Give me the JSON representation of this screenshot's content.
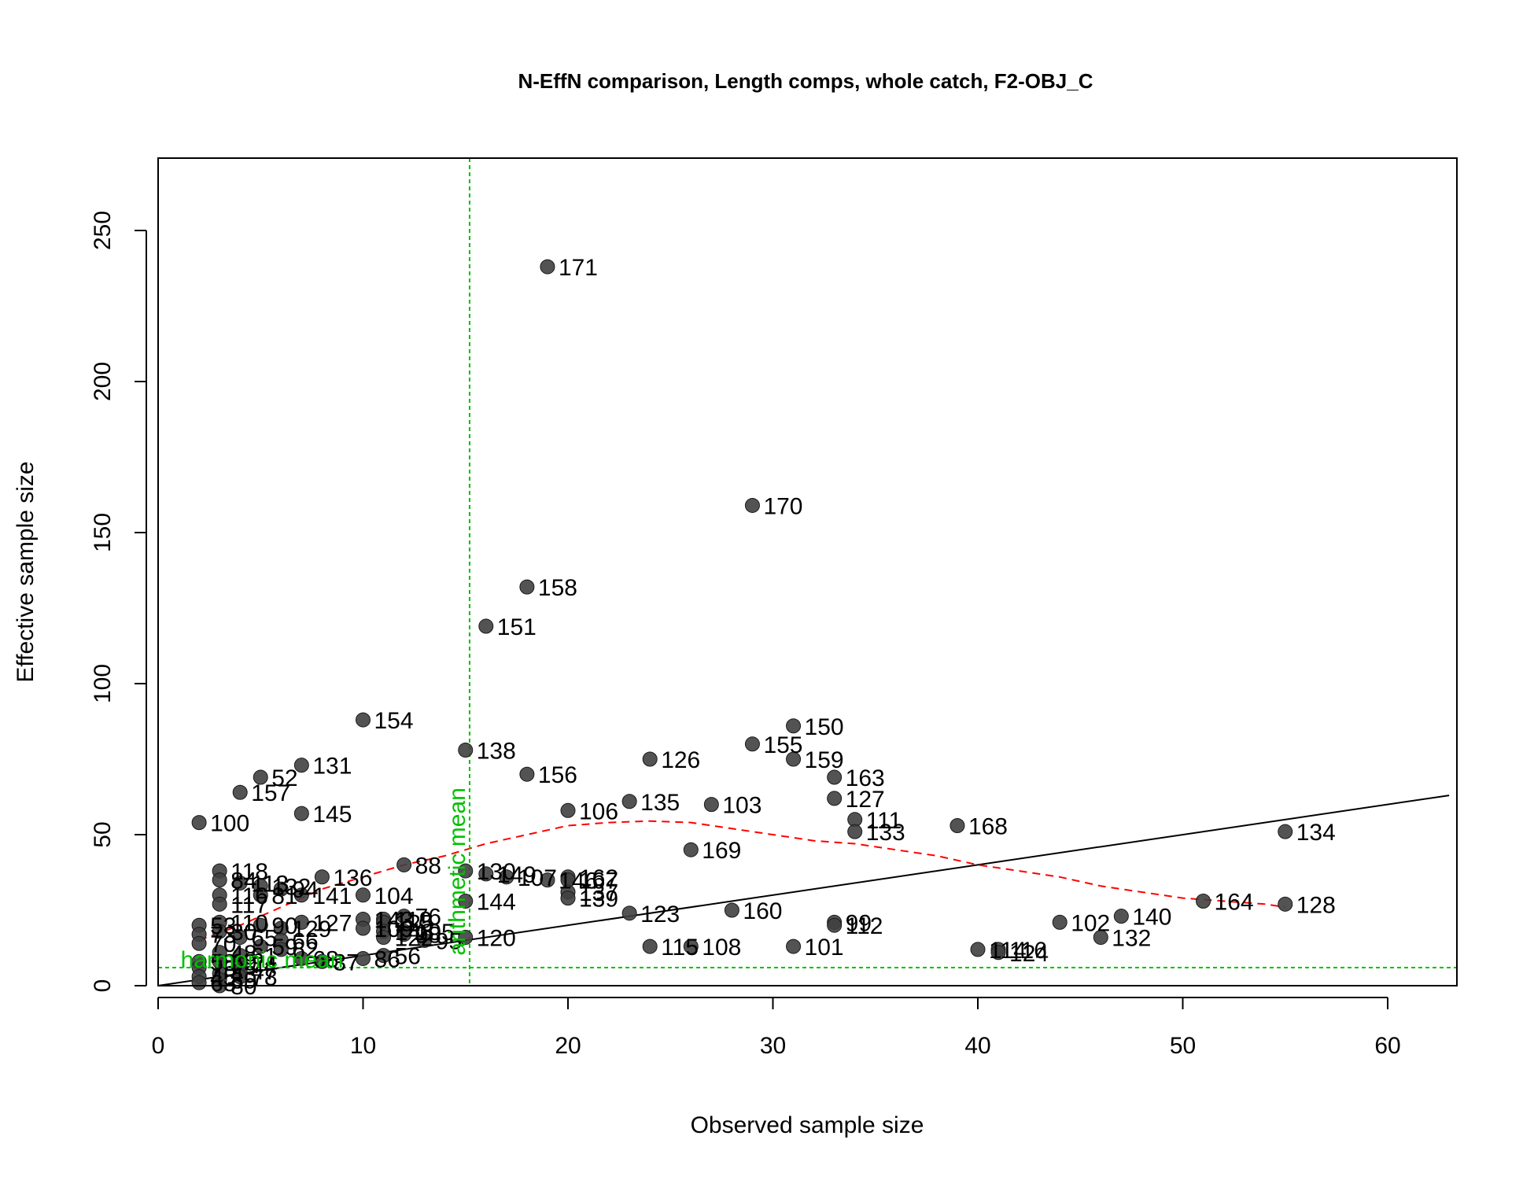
{
  "chart_data": {
    "type": "scatter",
    "title": "N-EffN comparison, Length comps, whole catch, F2-OBJ_C",
    "xlabel": "Observed sample size",
    "ylabel": "Effective sample size",
    "xlim": [
      0,
      63
    ],
    "ylim": [
      0,
      270
    ],
    "x_ticks": [
      0,
      10,
      20,
      30,
      40,
      50,
      60
    ],
    "y_ticks": [
      0,
      50,
      100,
      150,
      200,
      250
    ],
    "colors": {
      "points": "#404040",
      "one_to_one_line": "#000000",
      "loess": "#ff0000",
      "reference": "#00c000"
    },
    "points": [
      {
        "label": "171",
        "x": 19,
        "y": 238
      },
      {
        "label": "170",
        "x": 29,
        "y": 159
      },
      {
        "label": "158",
        "x": 18,
        "y": 132
      },
      {
        "label": "151",
        "x": 16,
        "y": 119
      },
      {
        "label": "154",
        "x": 10,
        "y": 88
      },
      {
        "label": "150",
        "x": 31,
        "y": 86
      },
      {
        "label": "155",
        "x": 29,
        "y": 80
      },
      {
        "label": "138",
        "x": 15,
        "y": 78
      },
      {
        "label": "126",
        "x": 24,
        "y": 75
      },
      {
        "label": "159",
        "x": 31,
        "y": 75
      },
      {
        "label": "131",
        "x": 7,
        "y": 73
      },
      {
        "label": "156",
        "x": 18,
        "y": 70
      },
      {
        "label": "52",
        "x": 5,
        "y": 69
      },
      {
        "label": "163",
        "x": 33,
        "y": 69
      },
      {
        "label": "157",
        "x": 4,
        "y": 64
      },
      {
        "label": "135",
        "x": 23,
        "y": 61
      },
      {
        "label": "127",
        "x": 33,
        "y": 62
      },
      {
        "label": "103",
        "x": 27,
        "y": 60
      },
      {
        "label": "106",
        "x": 20,
        "y": 58
      },
      {
        "label": "145",
        "x": 7,
        "y": 57
      },
      {
        "label": "111",
        "x": 34,
        "y": 55
      },
      {
        "label": "100",
        "x": 2,
        "y": 54
      },
      {
        "label": "168",
        "x": 39,
        "y": 53
      },
      {
        "label": "133",
        "x": 34,
        "y": 51
      },
      {
        "label": "134",
        "x": 55,
        "y": 51
      },
      {
        "label": "169",
        "x": 26,
        "y": 45
      },
      {
        "label": "88",
        "x": 12,
        "y": 40
      },
      {
        "label": "118",
        "x": 3,
        "y": 38
      },
      {
        "label": "130",
        "x": 15,
        "y": 38
      },
      {
        "label": "149",
        "x": 16,
        "y": 37
      },
      {
        "label": "107",
        "x": 17,
        "y": 36
      },
      {
        "label": "146",
        "x": 19,
        "y": 35
      },
      {
        "label": "162",
        "x": 20,
        "y": 36
      },
      {
        "label": "167",
        "x": 20,
        "y": 35
      },
      {
        "label": "136",
        "x": 8,
        "y": 36
      },
      {
        "label": "84",
        "x": 3,
        "y": 35
      },
      {
        "label": "113",
        "x": 4,
        "y": 34
      },
      {
        "label": "132",
        "x": 5,
        "y": 33
      },
      {
        "label": "94",
        "x": 6,
        "y": 32
      },
      {
        "label": "141",
        "x": 7,
        "y": 30
      },
      {
        "label": "116",
        "x": 3,
        "y": 30
      },
      {
        "label": "81",
        "x": 5,
        "y": 30
      },
      {
        "label": "104",
        "x": 10,
        "y": 30
      },
      {
        "label": "137",
        "x": 20,
        "y": 31
      },
      {
        "label": "139",
        "x": 20,
        "y": 29
      },
      {
        "label": "144",
        "x": 15,
        "y": 28
      },
      {
        "label": "164",
        "x": 51,
        "y": 28
      },
      {
        "label": "128",
        "x": 55,
        "y": 27
      },
      {
        "label": "117",
        "x": 3,
        "y": 27
      },
      {
        "label": "160",
        "x": 28,
        "y": 25
      },
      {
        "label": "123",
        "x": 23,
        "y": 24
      },
      {
        "label": "140",
        "x": 47,
        "y": 23
      },
      {
        "label": "102",
        "x": 44,
        "y": 21
      },
      {
        "label": "99",
        "x": 33,
        "y": 21
      },
      {
        "label": "112",
        "x": 33,
        "y": 20
      },
      {
        "label": "76",
        "x": 12,
        "y": 23
      },
      {
        "label": "119",
        "x": 11,
        "y": 22
      },
      {
        "label": "125",
        "x": 11,
        "y": 21
      },
      {
        "label": "143",
        "x": 10,
        "y": 22
      },
      {
        "label": "53",
        "x": 2,
        "y": 20
      },
      {
        "label": "110",
        "x": 3,
        "y": 21
      },
      {
        "label": "90",
        "x": 5,
        "y": 20
      },
      {
        "label": "127",
        "x": 7,
        "y": 21
      },
      {
        "label": "129",
        "x": 6,
        "y": 19
      },
      {
        "label": "109",
        "x": 10,
        "y": 19
      },
      {
        "label": "148",
        "x": 11,
        "y": 18
      },
      {
        "label": "105",
        "x": 12,
        "y": 18
      },
      {
        "label": "98",
        "x": 12,
        "y": 17
      },
      {
        "label": "30",
        "x": 3,
        "y": 18
      },
      {
        "label": "73",
        "x": 2,
        "y": 17
      },
      {
        "label": "65",
        "x": 4,
        "y": 16
      },
      {
        "label": "122",
        "x": 11,
        "y": 16
      },
      {
        "label": "120",
        "x": 15,
        "y": 16
      },
      {
        "label": "66",
        "x": 6,
        "y": 15
      },
      {
        "label": "95",
        "x": 13,
        "y": 15
      },
      {
        "label": "70",
        "x": 2,
        "y": 14
      },
      {
        "label": "115",
        "x": 24,
        "y": 13
      },
      {
        "label": "108",
        "x": 26,
        "y": 13
      },
      {
        "label": "101",
        "x": 31,
        "y": 13
      },
      {
        "label": "59",
        "x": 5,
        "y": 13
      },
      {
        "label": "62",
        "x": 6,
        "y": 12
      },
      {
        "label": "116",
        "x": 41,
        "y": 12
      },
      {
        "label": "124",
        "x": 41,
        "y": 11
      },
      {
        "label": "114",
        "x": 40,
        "y": 12
      },
      {
        "label": "132",
        "x": 46,
        "y": 16
      },
      {
        "label": "48",
        "x": 3,
        "y": 11
      },
      {
        "label": "61",
        "x": 4,
        "y": 10
      },
      {
        "label": "56",
        "x": 11,
        "y": 10
      },
      {
        "label": "86",
        "x": 10,
        "y": 9
      },
      {
        "label": "68",
        "x": 7,
        "y": 9
      },
      {
        "label": "69",
        "x": 3,
        "y": 8
      },
      {
        "label": "37",
        "x": 8,
        "y": 8
      },
      {
        "label": "58",
        "x": 2,
        "y": 8
      },
      {
        "label": "74",
        "x": 4,
        "y": 7
      },
      {
        "label": "75",
        "x": 2,
        "y": 6
      },
      {
        "label": "47",
        "x": 4,
        "y": 5
      },
      {
        "label": "43",
        "x": 3,
        "y": 4
      },
      {
        "label": "78",
        "x": 4,
        "y": 3
      },
      {
        "label": "45",
        "x": 2,
        "y": 3
      },
      {
        "label": "39",
        "x": 3,
        "y": 2
      },
      {
        "label": "63",
        "x": 2,
        "y": 1
      },
      {
        "label": "80",
        "x": 3,
        "y": 0
      }
    ],
    "one_to_one_line": [
      [
        0,
        0
      ],
      [
        63,
        63
      ]
    ],
    "loess": [
      [
        2,
        15
      ],
      [
        4,
        20
      ],
      [
        6,
        26
      ],
      [
        8,
        32
      ],
      [
        10,
        36
      ],
      [
        12,
        40
      ],
      [
        14,
        43
      ],
      [
        16,
        47
      ],
      [
        18,
        50
      ],
      [
        20,
        53
      ],
      [
        22,
        54
      ],
      [
        24,
        54.5
      ],
      [
        26,
        54
      ],
      [
        28,
        52
      ],
      [
        30,
        50
      ],
      [
        32,
        48
      ],
      [
        34,
        47
      ],
      [
        36,
        45
      ],
      [
        38,
        43
      ],
      [
        40,
        40
      ],
      [
        42,
        38
      ],
      [
        44,
        36
      ],
      [
        46,
        33
      ],
      [
        48,
        31
      ],
      [
        50,
        29
      ],
      [
        52,
        28
      ],
      [
        54,
        27
      ],
      [
        55,
        26
      ]
    ],
    "arithmetic_mean_x": 15.2,
    "harmonic_mean_y": 6,
    "annotations": {
      "arithmetic_mean": "arithmetic mean",
      "harmonic_mean": "harmonic mean"
    }
  }
}
